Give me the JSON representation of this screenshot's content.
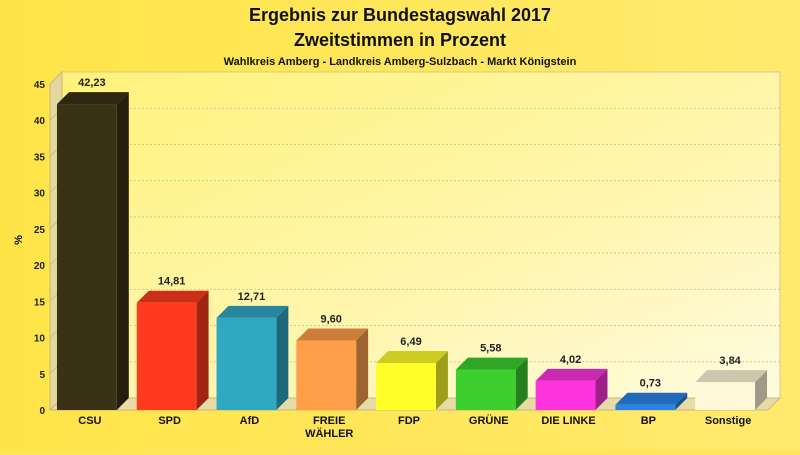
{
  "chart_data": {
    "type": "bar",
    "title": "Ergebnis zur Bundestagswahl 2017",
    "title_line2": "Zweitstimmen in Prozent",
    "subtitle": "Wahlkreis Amberg - Landkreis Amberg-Sulzbach - Markt Königstein",
    "xlabel": "",
    "ylabel": "%",
    "ylim": [
      0,
      45
    ],
    "yticks": [
      0,
      5,
      10,
      15,
      20,
      25,
      30,
      35,
      40,
      45
    ],
    "grid": true,
    "categories": [
      [
        "CSU"
      ],
      [
        "SPD"
      ],
      [
        "AfD"
      ],
      [
        "FREIE",
        "WÄHLER"
      ],
      [
        "FDP"
      ],
      [
        "GRÜNE"
      ],
      [
        "DIE LINKE"
      ],
      [
        "BP"
      ],
      [
        "Sonstige"
      ]
    ],
    "values": [
      42.23,
      14.81,
      12.71,
      9.6,
      6.49,
      5.58,
      4.02,
      0.73,
      3.84
    ],
    "value_labels": [
      "42,23",
      "14,81",
      "12,71",
      "9,60",
      "6,49",
      "5,58",
      "4,02",
      "0,73",
      "3,84"
    ],
    "colors": [
      "#3a3214",
      "#ff3a1e",
      "#2fa8c4",
      "#ff9f4a",
      "#ffff2a",
      "#3ccf2e",
      "#ff33dd",
      "#2a84e8",
      "#fff8d8"
    ]
  }
}
